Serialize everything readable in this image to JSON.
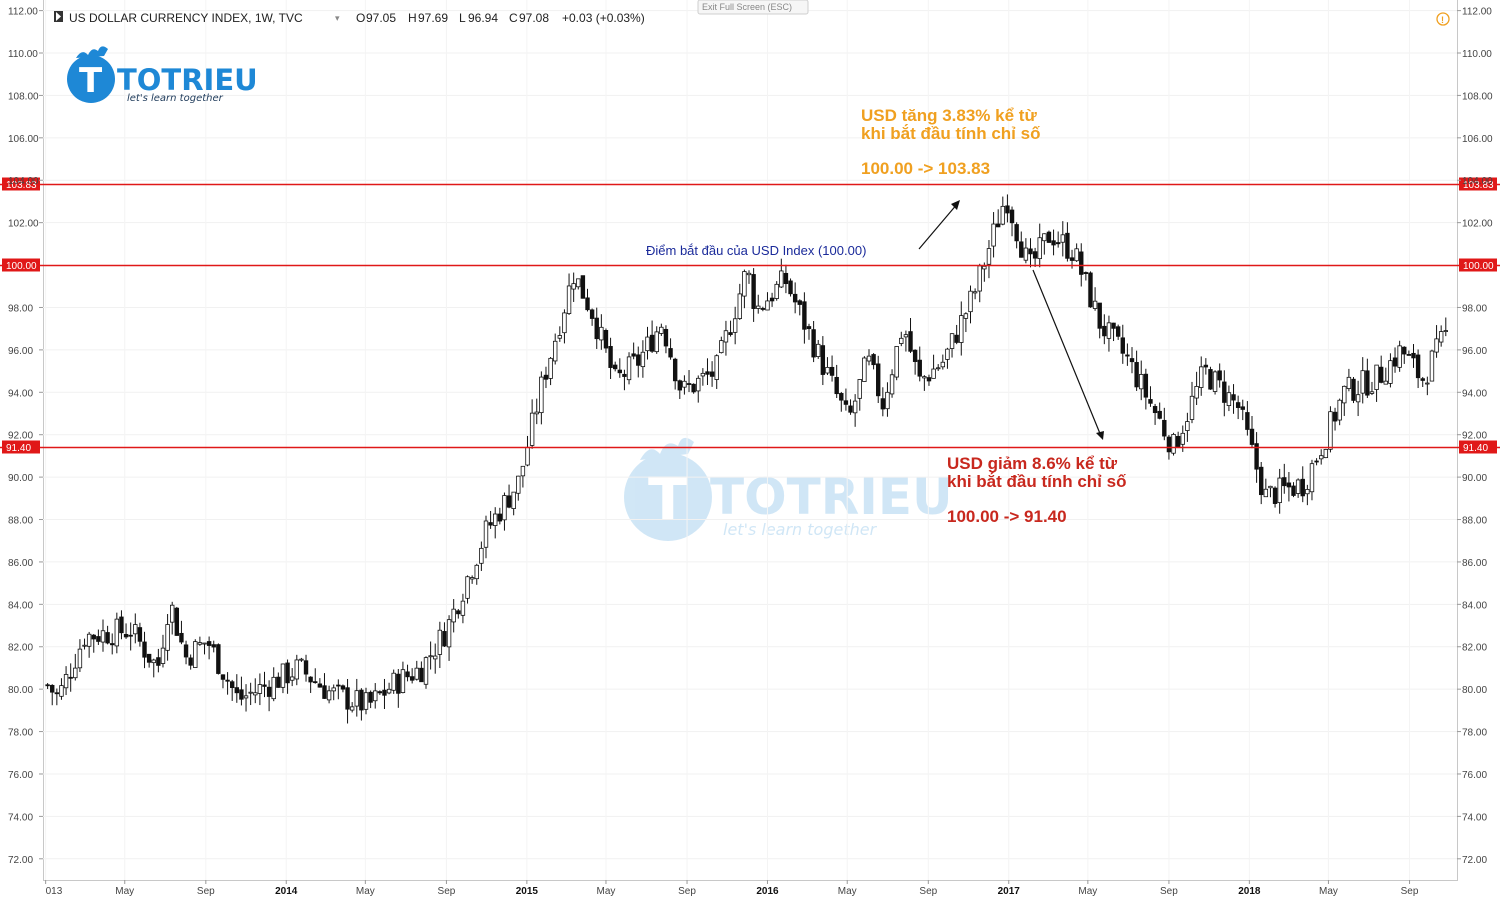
{
  "header": {
    "title": "US DOLLAR CURRENCY INDEX, 1W, TVC",
    "open_label": "O",
    "open": "97.05",
    "high_label": "H",
    "high": "97.69",
    "low_label": "L",
    "low": "96.94",
    "close_label": "C",
    "close": "97.08",
    "change": "+0.03 (+0.03%)",
    "exit_fullscreen": "Exit Full Screen (ESC)"
  },
  "logo": {
    "name": "TOTRIEU",
    "tagline": "let's learn together"
  },
  "annotations": {
    "start_point": "Điểm bắt đầu của USD Index (100.00)",
    "up_line1": "USD tăng 3.83% kể từ",
    "up_line2": "khi bắt đầu tính chỉ số",
    "up_line3": "100.00 -> 103.83",
    "down_line1": "USD giảm 8.6% kể từ",
    "down_line2": "khi bắt đầu tính chỉ số",
    "down_line3": "100.00 -> 91.40"
  },
  "colors": {
    "level_line": "#e01818",
    "up_text": "#f0a020",
    "down_text": "#c8281e",
    "start_text": "#1a2a9a",
    "candle": "#111111",
    "warning_icon": "#f0a020"
  },
  "chart_data": {
    "type": "candlestick",
    "timeframe": "1W",
    "symbol": "TVC:DXY",
    "ylim": [
      71,
      112.5
    ],
    "y_ticks": [
      "112.00",
      "110.00",
      "108.00",
      "106.00",
      "104.00",
      "102.00",
      "98.00",
      "96.00",
      "94.00",
      "92.00",
      "90.00",
      "88.00",
      "86.00",
      "84.00",
      "82.00",
      "80.00",
      "78.00",
      "76.00",
      "74.00",
      "72.00"
    ],
    "y_tick_values": [
      112,
      110,
      108,
      106,
      104,
      102,
      98,
      96,
      94,
      92,
      90,
      88,
      86,
      84,
      82,
      80,
      78,
      76,
      74,
      72
    ],
    "x_ticks": [
      {
        "label": "013",
        "date": "2013-01-01",
        "bold": false
      },
      {
        "label": "May",
        "date": "2013-05-01",
        "bold": false
      },
      {
        "label": "Sep",
        "date": "2013-09-01",
        "bold": false
      },
      {
        "label": "2014",
        "date": "2014-01-01",
        "bold": true
      },
      {
        "label": "May",
        "date": "2014-05-01",
        "bold": false
      },
      {
        "label": "Sep",
        "date": "2014-09-01",
        "bold": false
      },
      {
        "label": "2015",
        "date": "2015-01-01",
        "bold": true
      },
      {
        "label": "May",
        "date": "2015-05-01",
        "bold": false
      },
      {
        "label": "Sep",
        "date": "2015-09-01",
        "bold": false
      },
      {
        "label": "2016",
        "date": "2016-01-01",
        "bold": true
      },
      {
        "label": "May",
        "date": "2016-05-01",
        "bold": false
      },
      {
        "label": "Sep",
        "date": "2016-09-01",
        "bold": false
      },
      {
        "label": "2017",
        "date": "2017-01-01",
        "bold": true
      },
      {
        "label": "May",
        "date": "2017-05-01",
        "bold": false
      },
      {
        "label": "Sep",
        "date": "2017-09-01",
        "bold": false
      },
      {
        "label": "2018",
        "date": "2018-01-01",
        "bold": true
      },
      {
        "label": "May",
        "date": "2018-05-01",
        "bold": false
      },
      {
        "label": "Sep",
        "date": "2018-09-01",
        "bold": false
      }
    ],
    "horizontal_levels": [
      {
        "value": 103.83,
        "label": "103.83"
      },
      {
        "value": 100.0,
        "label": "100.00"
      },
      {
        "value": 91.4,
        "label": "91.40"
      }
    ],
    "anchors": [
      {
        "date": "2013-01-01",
        "value": 80.3
      },
      {
        "date": "2013-01-20",
        "value": 79.6
      },
      {
        "date": "2013-03-01",
        "value": 82.5
      },
      {
        "date": "2013-05-10",
        "value": 82.8
      },
      {
        "date": "2013-06-20",
        "value": 81.0
      },
      {
        "date": "2013-07-08",
        "value": 84.2
      },
      {
        "date": "2013-08-01",
        "value": 81.5
      },
      {
        "date": "2013-09-03",
        "value": 82.3
      },
      {
        "date": "2013-10-20",
        "value": 79.5
      },
      {
        "date": "2013-12-10",
        "value": 80.3
      },
      {
        "date": "2014-01-20",
        "value": 81.0
      },
      {
        "date": "2014-03-10",
        "value": 79.8
      },
      {
        "date": "2014-05-05",
        "value": 79.2
      },
      {
        "date": "2014-06-15",
        "value": 80.3
      },
      {
        "date": "2014-07-25",
        "value": 81.0
      },
      {
        "date": "2014-09-01",
        "value": 82.8
      },
      {
        "date": "2014-11-01",
        "value": 87.5
      },
      {
        "date": "2014-12-20",
        "value": 89.8
      },
      {
        "date": "2015-01-25",
        "value": 94.5
      },
      {
        "date": "2015-03-13",
        "value": 99.6
      },
      {
        "date": "2015-04-10",
        "value": 97.8
      },
      {
        "date": "2015-05-15",
        "value": 94.5
      },
      {
        "date": "2015-06-20",
        "value": 95.5
      },
      {
        "date": "2015-07-25",
        "value": 97.3
      },
      {
        "date": "2015-08-24",
        "value": 94.0
      },
      {
        "date": "2015-10-15",
        "value": 95.0
      },
      {
        "date": "2015-12-01",
        "value": 99.8
      },
      {
        "date": "2015-12-15",
        "value": 97.9
      },
      {
        "date": "2016-01-28",
        "value": 99.3
      },
      {
        "date": "2016-03-15",
        "value": 96.0
      },
      {
        "date": "2016-05-03",
        "value": 92.6
      },
      {
        "date": "2016-06-01",
        "value": 95.5
      },
      {
        "date": "2016-06-24",
        "value": 93.5
      },
      {
        "date": "2016-07-25",
        "value": 97.2
      },
      {
        "date": "2016-08-18",
        "value": 94.5
      },
      {
        "date": "2016-09-25",
        "value": 95.5
      },
      {
        "date": "2016-11-10",
        "value": 98.7
      },
      {
        "date": "2016-12-28",
        "value": 103.3
      },
      {
        "date": "2017-02-01",
        "value": 99.8
      },
      {
        "date": "2017-03-05",
        "value": 101.5
      },
      {
        "date": "2017-04-10",
        "value": 100.6
      },
      {
        "date": "2017-05-20",
        "value": 97.2
      },
      {
        "date": "2017-07-01",
        "value": 95.5
      },
      {
        "date": "2017-09-08",
        "value": 91.4
      },
      {
        "date": "2017-10-25",
        "value": 95.0
      },
      {
        "date": "2017-12-15",
        "value": 93.3
      },
      {
        "date": "2018-01-25",
        "value": 89.1
      },
      {
        "date": "2018-03-25",
        "value": 89.7
      },
      {
        "date": "2018-04-25",
        "value": 91.8
      },
      {
        "date": "2018-05-25",
        "value": 94.0
      },
      {
        "date": "2018-07-15",
        "value": 94.7
      },
      {
        "date": "2018-08-20",
        "value": 96.0
      },
      {
        "date": "2018-09-20",
        "value": 94.6
      },
      {
        "date": "2018-10-31",
        "value": 97.0
      }
    ]
  }
}
